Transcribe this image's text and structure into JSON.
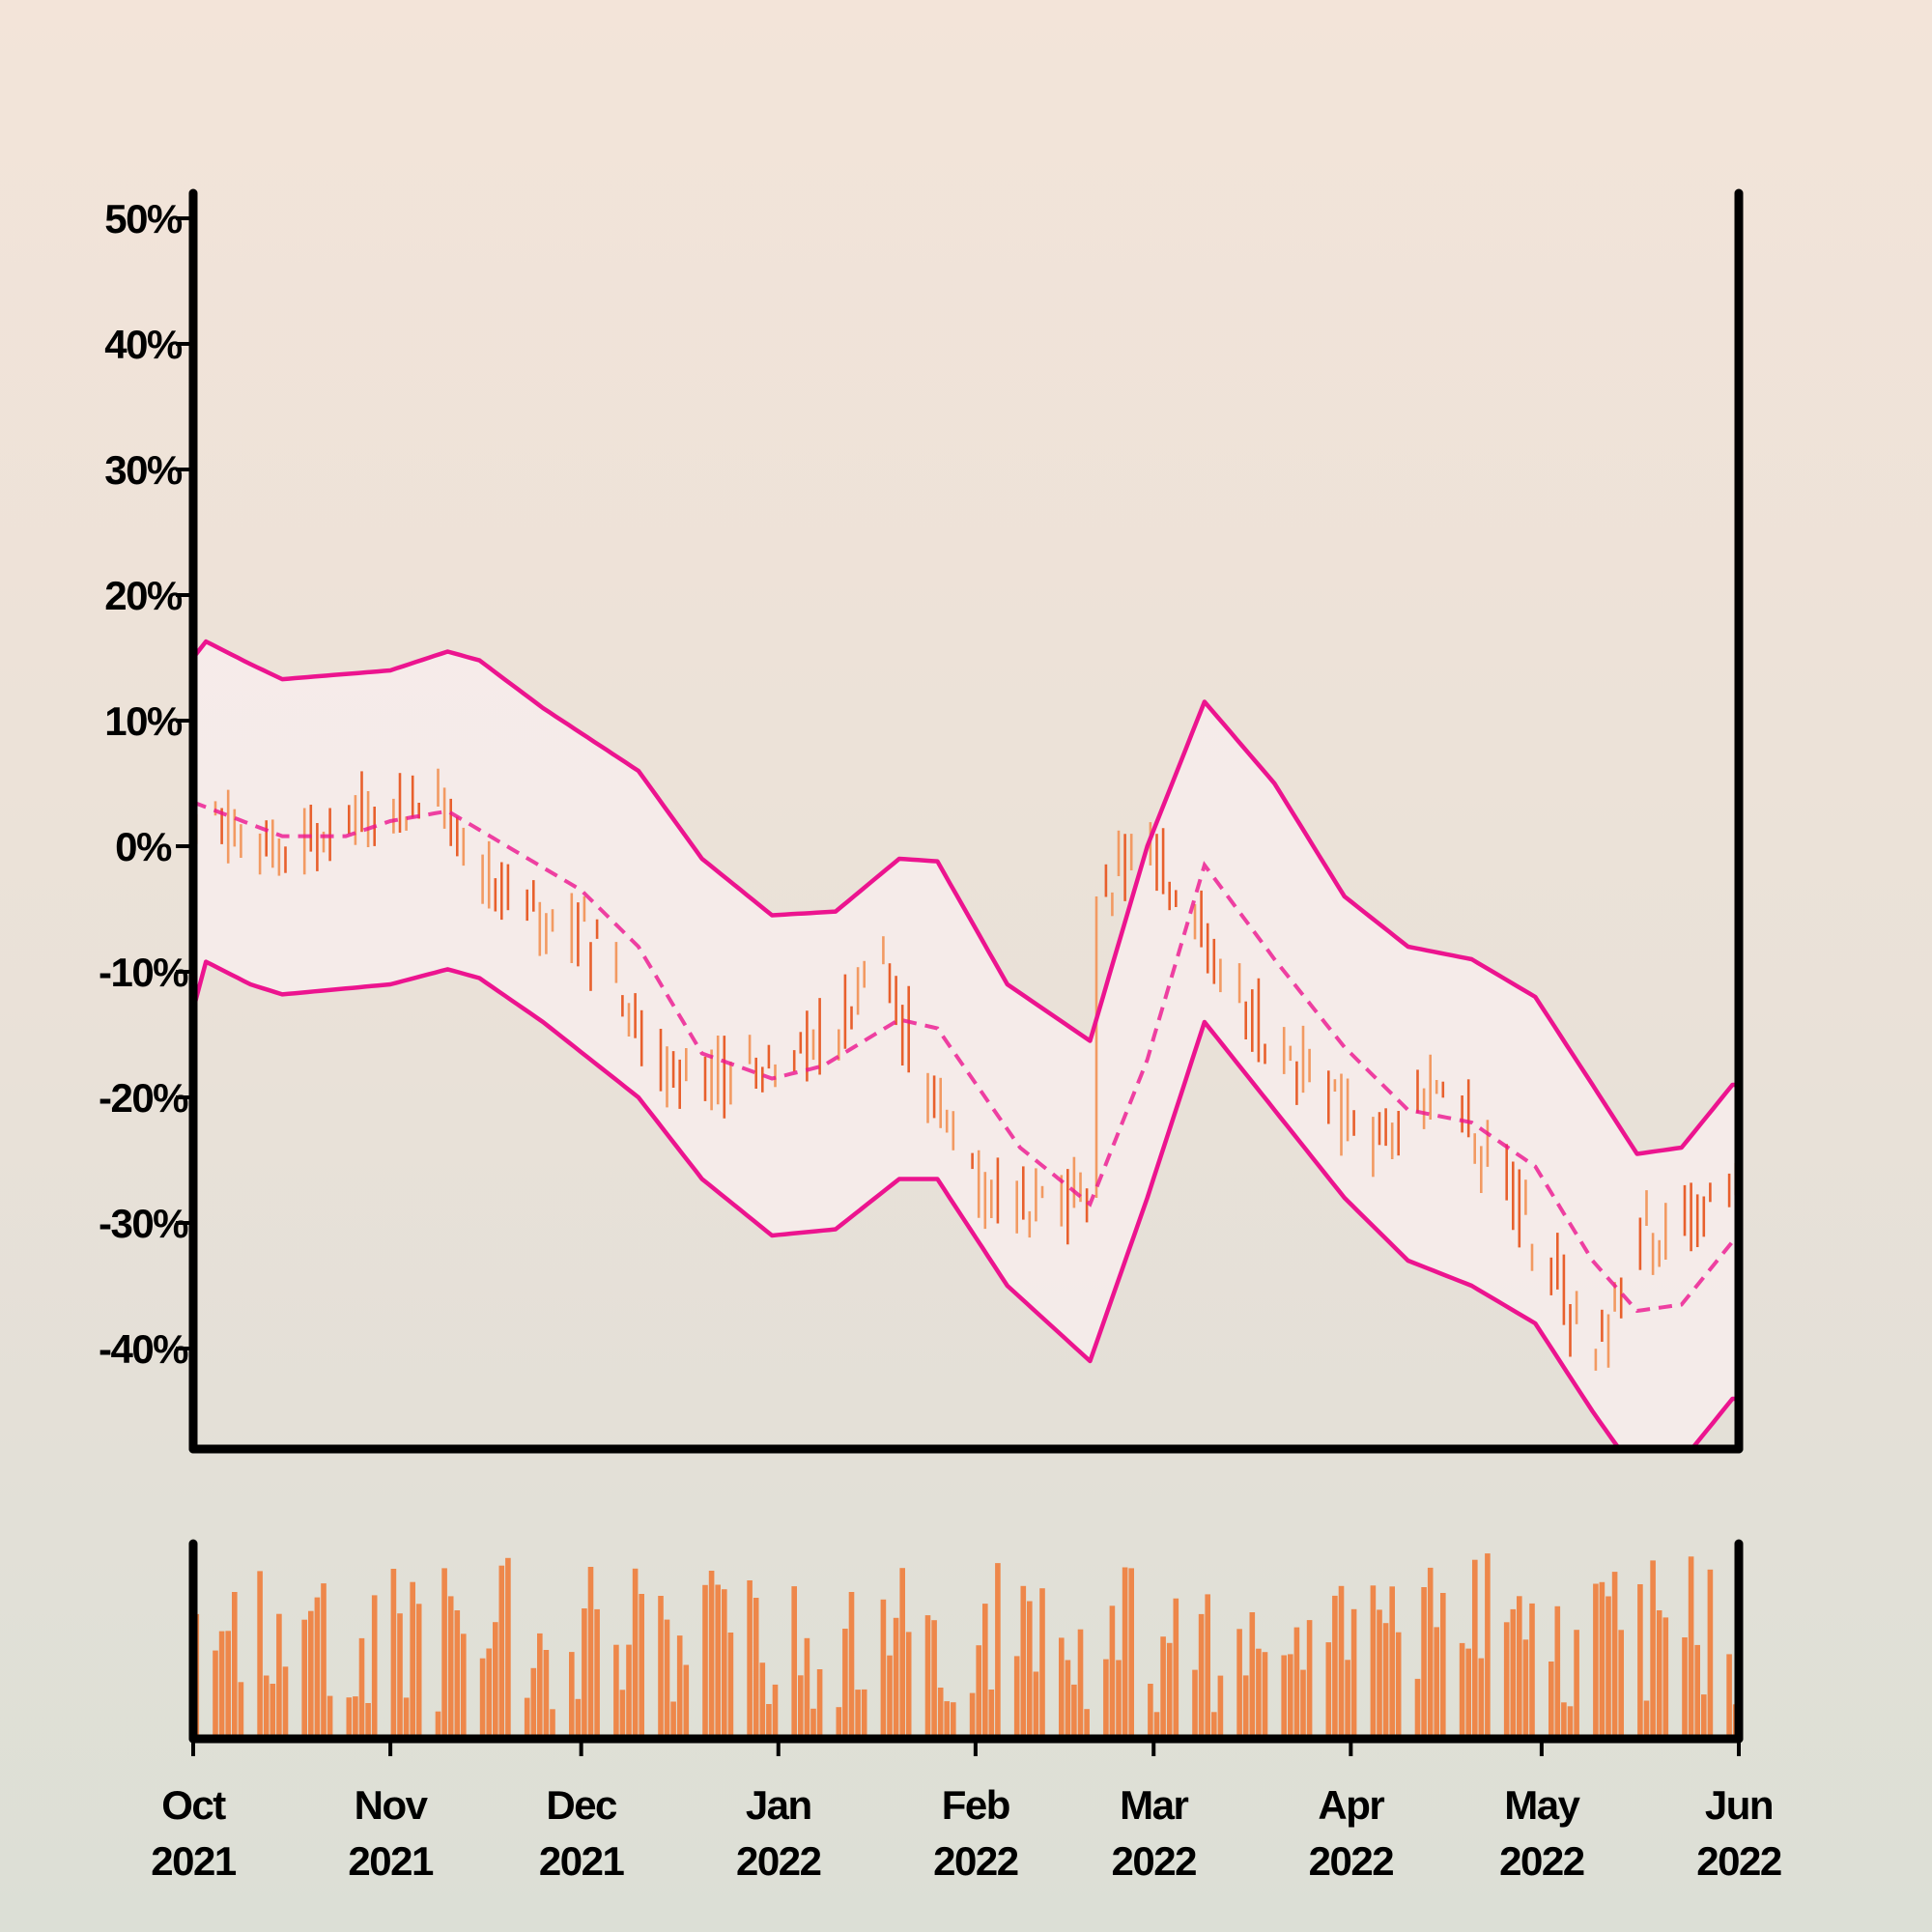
{
  "chart_data": [
    {
      "type": "ohlc",
      "title": "",
      "xlabel": "",
      "ylabel": "",
      "ylim": [
        -48,
        52
      ],
      "y_ticks": [
        50,
        40,
        30,
        20,
        10,
        0,
        -10,
        -20,
        -30,
        -40
      ],
      "y_tick_labels": [
        "50%",
        "40%",
        "30%",
        "20%",
        "10%",
        "0%",
        "-10%",
        "-20%",
        "-30%",
        "-40%"
      ],
      "grid": false,
      "legend": "none",
      "colors": {
        "bar_up": "#f29a62",
        "bar_down": "#e8602d",
        "bands": "#ec148f",
        "band_fill": "#f7ecec",
        "axis": "#000000",
        "background_top": "#f3e4d9",
        "background_bottom": "#dcdfd6"
      },
      "overlays": [
        "bollinger-bands",
        "moving-average-dashed"
      ],
      "price_keypoints": [
        {
          "date": "2021-10-01",
          "value": 3
        },
        {
          "date": "2021-10-05",
          "value": 2
        },
        {
          "date": "2021-10-15",
          "value": -2
        },
        {
          "date": "2021-10-25",
          "value": 3
        },
        {
          "date": "2021-11-01",
          "value": 3
        },
        {
          "date": "2021-11-10",
          "value": 2
        },
        {
          "date": "2021-11-20",
          "value": -5
        },
        {
          "date": "2021-12-01",
          "value": -7
        },
        {
          "date": "2021-12-12",
          "value": -17
        },
        {
          "date": "2021-12-20",
          "value": -18
        },
        {
          "date": "2022-01-01",
          "value": -18
        },
        {
          "date": "2022-01-10",
          "value": -15
        },
        {
          "date": "2022-01-16",
          "value": -9
        },
        {
          "date": "2022-01-25",
          "value": -20
        },
        {
          "date": "2022-02-05",
          "value": -29
        },
        {
          "date": "2022-02-16",
          "value": -28
        },
        {
          "date": "2022-02-19",
          "value": -28
        },
        {
          "date": "2022-02-20",
          "value": -5
        },
        {
          "date": "2022-02-27",
          "value": 1
        },
        {
          "date": "2022-03-03",
          "value": -2
        },
        {
          "date": "2022-03-12",
          "value": -11
        },
        {
          "date": "2022-03-25",
          "value": -18
        },
        {
          "date": "2022-04-05",
          "value": -24
        },
        {
          "date": "2022-04-15",
          "value": -19
        },
        {
          "date": "2022-04-20",
          "value": -23
        },
        {
          "date": "2022-05-01",
          "value": -32
        },
        {
          "date": "2022-05-08",
          "value": -41
        },
        {
          "date": "2022-05-12",
          "value": -37
        },
        {
          "date": "2022-05-15",
          "value": -31
        },
        {
          "date": "2022-05-31",
          "value": -28
        }
      ],
      "moving_average_keypoints": [
        {
          "date": "2021-10-01",
          "value": 3.5
        },
        {
          "date": "2021-10-15",
          "value": 0.8
        },
        {
          "date": "2021-10-25",
          "value": 0.8
        },
        {
          "date": "2021-11-01",
          "value": 2
        },
        {
          "date": "2021-11-10",
          "value": 2.8
        },
        {
          "date": "2021-12-01",
          "value": -3.5
        },
        {
          "date": "2021-12-10",
          "value": -8
        },
        {
          "date": "2021-12-20",
          "value": -16.5
        },
        {
          "date": "2021-12-31",
          "value": -18.5
        },
        {
          "date": "2022-01-08",
          "value": -17.5
        },
        {
          "date": "2022-01-20",
          "value": -13.8
        },
        {
          "date": "2022-01-26",
          "value": -14.5
        },
        {
          "date": "2022-02-08",
          "value": -24
        },
        {
          "date": "2022-02-19",
          "value": -28.5
        },
        {
          "date": "2022-02-28",
          "value": -17
        },
        {
          "date": "2022-03-09",
          "value": -1.5
        },
        {
          "date": "2022-03-20",
          "value": -9
        },
        {
          "date": "2022-03-31",
          "value": -16
        },
        {
          "date": "2022-04-10",
          "value": -21
        },
        {
          "date": "2022-04-20",
          "value": -22
        },
        {
          "date": "2022-04-30",
          "value": -25.5
        },
        {
          "date": "2022-05-09",
          "value": -33
        },
        {
          "date": "2022-05-16",
          "value": -37
        },
        {
          "date": "2022-05-23",
          "value": -36.5
        },
        {
          "date": "2022-05-31",
          "value": -31.5
        }
      ],
      "upper_band_keypoints": [
        {
          "date": "2021-10-01",
          "value": 15
        },
        {
          "date": "2021-10-03",
          "value": 16.3
        },
        {
          "date": "2021-10-10",
          "value": 14.5
        },
        {
          "date": "2021-10-15",
          "value": 13.3
        },
        {
          "date": "2021-11-01",
          "value": 14
        },
        {
          "date": "2021-11-10",
          "value": 15.5
        },
        {
          "date": "2021-11-15",
          "value": 14.8
        },
        {
          "date": "2021-11-25",
          "value": 11
        },
        {
          "date": "2021-12-10",
          "value": 6
        },
        {
          "date": "2021-12-20",
          "value": -1
        },
        {
          "date": "2021-12-31",
          "value": -5.5
        },
        {
          "date": "2022-01-10",
          "value": -5.2
        },
        {
          "date": "2022-01-20",
          "value": -1
        },
        {
          "date": "2022-01-26",
          "value": -1.2
        },
        {
          "date": "2022-02-06",
          "value": -11
        },
        {
          "date": "2022-02-19",
          "value": -15.5
        },
        {
          "date": "2022-02-28",
          "value": 0
        },
        {
          "date": "2022-03-09",
          "value": 11.5
        },
        {
          "date": "2022-03-20",
          "value": 5
        },
        {
          "date": "2022-03-31",
          "value": -4
        },
        {
          "date": "2022-04-10",
          "value": -8
        },
        {
          "date": "2022-04-20",
          "value": -9
        },
        {
          "date": "2022-04-30",
          "value": -12
        },
        {
          "date": "2022-05-09",
          "value": -19
        },
        {
          "date": "2022-05-16",
          "value": -24.5
        },
        {
          "date": "2022-05-23",
          "value": -24
        },
        {
          "date": "2022-05-31",
          "value": -19
        }
      ],
      "lower_band_keypoints": [
        {
          "date": "2021-10-01",
          "value": -13
        },
        {
          "date": "2021-10-03",
          "value": -9.2
        },
        {
          "date": "2021-10-10",
          "value": -11
        },
        {
          "date": "2021-10-15",
          "value": -11.8
        },
        {
          "date": "2021-11-01",
          "value": -11
        },
        {
          "date": "2021-11-10",
          "value": -9.8
        },
        {
          "date": "2021-11-15",
          "value": -10.5
        },
        {
          "date": "2021-11-25",
          "value": -14
        },
        {
          "date": "2021-12-10",
          "value": -20
        },
        {
          "date": "2021-12-20",
          "value": -26.5
        },
        {
          "date": "2021-12-31",
          "value": -31
        },
        {
          "date": "2022-01-10",
          "value": -30.5
        },
        {
          "date": "2022-01-20",
          "value": -26.5
        },
        {
          "date": "2022-01-26",
          "value": -26.5
        },
        {
          "date": "2022-02-06",
          "value": -35
        },
        {
          "date": "2022-02-19",
          "value": -41
        },
        {
          "date": "2022-02-28",
          "value": -28
        },
        {
          "date": "2022-03-09",
          "value": -14
        },
        {
          "date": "2022-03-20",
          "value": -21
        },
        {
          "date": "2022-03-31",
          "value": -28
        },
        {
          "date": "2022-04-10",
          "value": -33
        },
        {
          "date": "2022-04-20",
          "value": -35
        },
        {
          "date": "2022-04-30",
          "value": -38
        },
        {
          "date": "2022-05-09",
          "value": -45
        },
        {
          "date": "2022-05-16",
          "value": -50
        },
        {
          "date": "2022-05-23",
          "value": -49
        },
        {
          "date": "2022-05-31",
          "value": -44
        }
      ]
    },
    {
      "type": "bar",
      "title": "",
      "xlabel": "",
      "ylabel": "",
      "series": [
        {
          "name": "",
          "description": "daily volume, relative units (no tick labels shown)"
        }
      ],
      "volume_range": [
        0.1,
        1.0
      ],
      "x_ticks": [
        "2021-10-01",
        "2021-11-01",
        "2021-12-01",
        "2022-01-01",
        "2022-02-01",
        "2022-03-01",
        "2022-04-01",
        "2022-05-01",
        "2022-06-01"
      ],
      "x_tick_labels": [
        [
          "Oct",
          "2021"
        ],
        [
          "Nov",
          "2021"
        ],
        [
          "Dec",
          "2021"
        ],
        [
          "Jan",
          "2022"
        ],
        [
          "Feb",
          "2022"
        ],
        [
          "Mar",
          "2022"
        ],
        [
          "Apr",
          "2022"
        ],
        [
          "May",
          "2022"
        ],
        [
          "Jun",
          "2022"
        ]
      ],
      "xlim": [
        "2021-10-01",
        "2022-06-01"
      ]
    }
  ]
}
